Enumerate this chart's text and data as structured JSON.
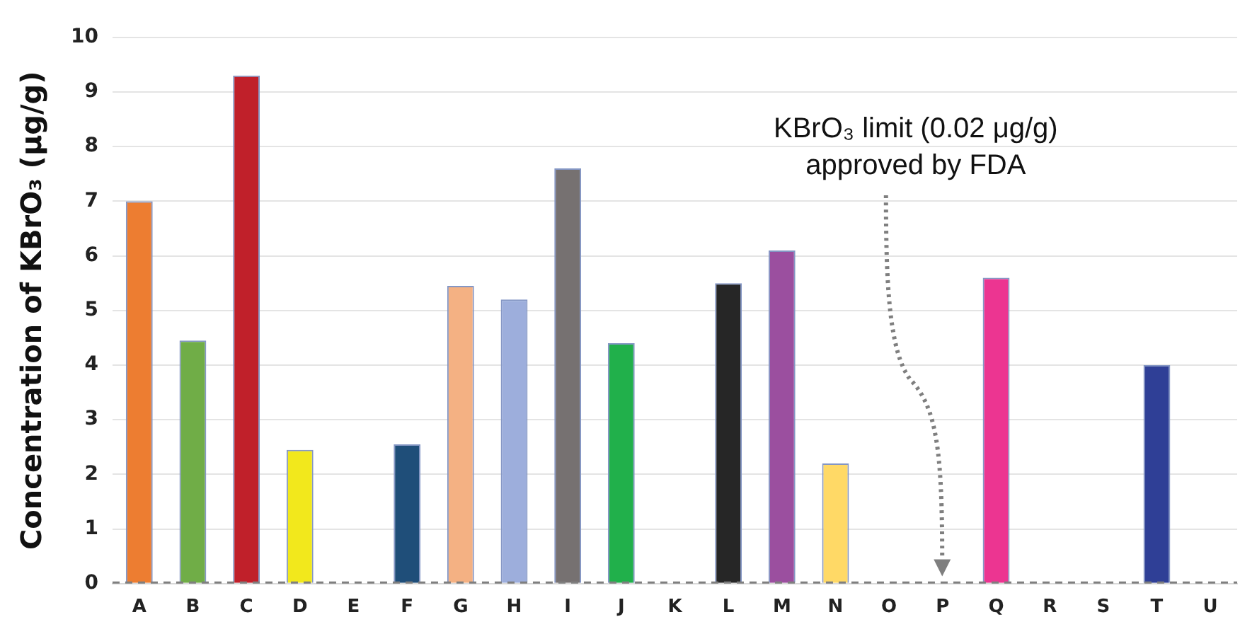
{
  "chart_data": {
    "type": "bar",
    "ylabel": "Concentration of KBrO₃ (μg/g)",
    "categories": [
      "A",
      "B",
      "C",
      "D",
      "E",
      "F",
      "G",
      "H",
      "I",
      "J",
      "K",
      "L",
      "M",
      "N",
      "O",
      "P",
      "Q",
      "R",
      "S",
      "T",
      "U"
    ],
    "values": [
      7.0,
      4.45,
      9.3,
      2.45,
      null,
      2.55,
      5.45,
      5.2,
      7.6,
      4.4,
      null,
      5.5,
      6.1,
      2.2,
      null,
      null,
      5.6,
      null,
      null,
      4.0,
      null
    ],
    "colors": [
      "#ed7d31",
      "#70ad47",
      "#c0202a",
      "#f2e81c",
      "#cccccc",
      "#1f4e79",
      "#f4b183",
      "#9daedc",
      "#767171",
      "#21b04b",
      "#cccccc",
      "#262626",
      "#9b4f9f",
      "#ffd966",
      "#cccccc",
      "#cccccc",
      "#ec3591",
      "#cccccc",
      "#cccccc",
      "#2f3f96",
      "#cccccc"
    ],
    "ylim": [
      0,
      10
    ],
    "yticks": [
      0,
      1,
      2,
      3,
      4,
      5,
      6,
      7,
      8,
      9,
      10
    ],
    "grid": "y",
    "legend": false,
    "ref_lines": [
      {
        "axis": "y",
        "value": 0.02,
        "color": "#7f7f7f",
        "line_style": "dashed"
      }
    ],
    "annotations": [
      "KBrO₃ limit (0.02 μg/g)\napproved by FDA"
    ]
  }
}
